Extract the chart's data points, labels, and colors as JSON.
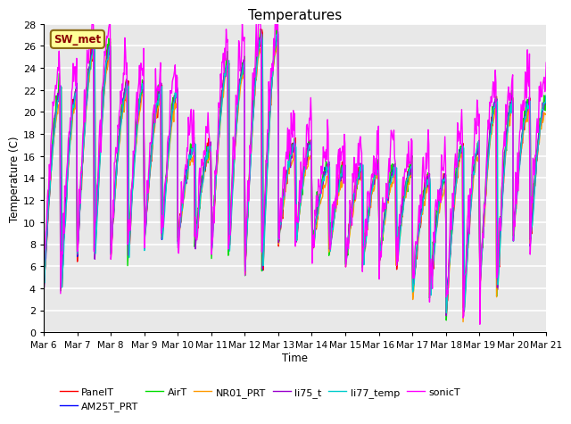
{
  "title": "Temperatures",
  "xlabel": "Time",
  "ylabel": "Temperature (C)",
  "ylim": [
    0,
    28
  ],
  "series_order": [
    "PanelT",
    "AM25T_PRT",
    "AirT",
    "NR01_PRT",
    "li75_t",
    "li77_temp",
    "sonicT"
  ],
  "series": {
    "PanelT": {
      "color": "#ff0000",
      "lw": 1.0
    },
    "AM25T_PRT": {
      "color": "#0000ff",
      "lw": 1.0
    },
    "AirT": {
      "color": "#00dd00",
      "lw": 1.0
    },
    "NR01_PRT": {
      "color": "#ff9900",
      "lw": 1.0
    },
    "li75_t": {
      "color": "#9900cc",
      "lw": 1.0
    },
    "li77_temp": {
      "color": "#00cccc",
      "lw": 1.0
    },
    "sonicT": {
      "color": "#ff00ff",
      "lw": 1.0
    }
  },
  "xtick_labels": [
    "Mar 6",
    "Mar 7",
    "Mar 8",
    "Mar 9",
    "Mar 10",
    "Mar 11",
    "Mar 12",
    "Mar 13",
    "Mar 14",
    "Mar 15",
    "Mar 16",
    "Mar 17",
    "Mar 18",
    "Mar 19",
    "Mar 20",
    "Mar 21"
  ],
  "annotation_text": "SW_met",
  "bg_color": "#e8e8e8",
  "grid_color": "#ffffff",
  "n_points": 720,
  "daily_highs": [
    22,
    26,
    22.5,
    22,
    17,
    24.5,
    27,
    17,
    15,
    15,
    15,
    14,
    17,
    21,
    21,
    14
  ],
  "daily_lows": [
    4,
    7,
    7,
    8,
    8,
    7,
    5,
    8,
    7,
    6,
    6,
    3,
    1,
    3,
    8,
    9
  ]
}
